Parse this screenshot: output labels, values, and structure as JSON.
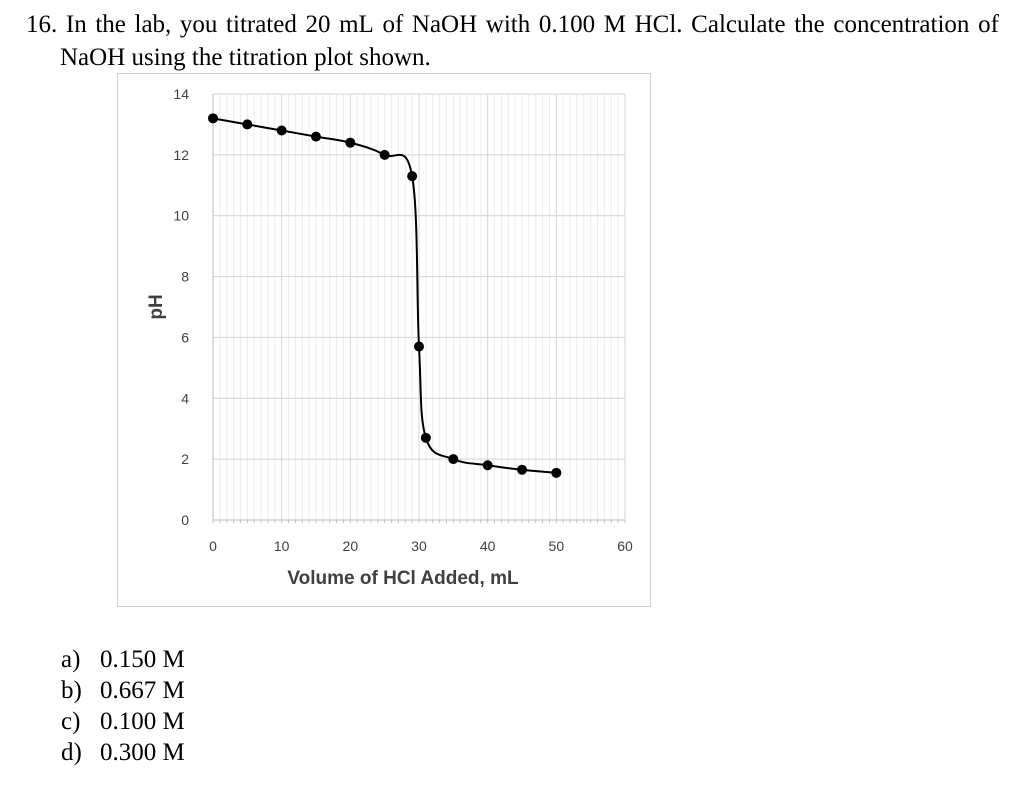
{
  "question": {
    "number": "16.",
    "line1_words": [
      "In",
      "the",
      "lab,",
      "you",
      "titrated",
      "20",
      "mL",
      "of",
      "NaOH",
      "with",
      "0.100",
      "M",
      "HCl.",
      "Calculate",
      "the",
      "concentration",
      "of"
    ],
    "line2": "NaOH using the titration plot shown."
  },
  "chart_data": {
    "type": "scatter",
    "title": "",
    "xlabel": "Volume of HCl Added, mL",
    "ylabel": "pH",
    "xlim": [
      0,
      60
    ],
    "ylim": [
      0,
      14
    ],
    "x_ticks": [
      "0",
      "10",
      "20",
      "30",
      "40",
      "50",
      "60"
    ],
    "y_ticks": [
      "0",
      "2",
      "4",
      "6",
      "8",
      "10",
      "12",
      "14"
    ],
    "grid": true,
    "series": [
      {
        "points": [
          {
            "x": 0,
            "y": 13.2
          },
          {
            "x": 5,
            "y": 13.0
          },
          {
            "x": 10,
            "y": 12.8
          },
          {
            "x": 15,
            "y": 12.6
          },
          {
            "x": 20,
            "y": 12.4
          },
          {
            "x": 25,
            "y": 12.0
          },
          {
            "x": 29,
            "y": 11.3
          },
          {
            "x": 30,
            "y": 5.7
          },
          {
            "x": 31,
            "y": 2.7
          },
          {
            "x": 35,
            "y": 2.0
          },
          {
            "x": 40,
            "y": 1.8
          },
          {
            "x": 45,
            "y": 1.65
          },
          {
            "x": 50,
            "y": 1.55
          }
        ],
        "color": "#000000",
        "smooth_line": true
      }
    ]
  },
  "answers": [
    {
      "letter": "a)",
      "text": "0.150 M"
    },
    {
      "letter": "b)",
      "text": "0.667 M"
    },
    {
      "letter": "c)",
      "text": "0.100 M"
    },
    {
      "letter": "d)",
      "text": "0.300 M"
    }
  ]
}
